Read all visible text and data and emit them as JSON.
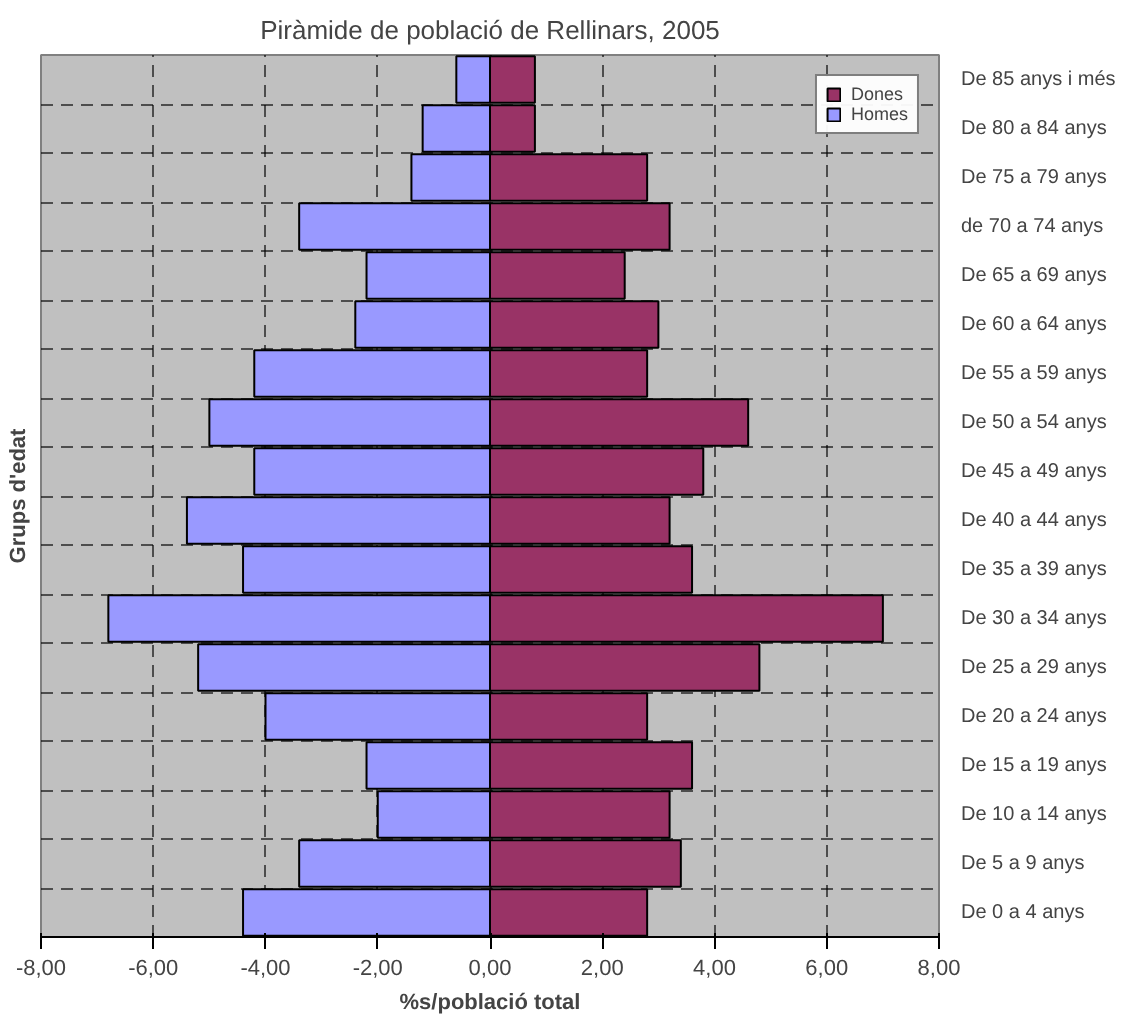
{
  "chart_data": {
    "type": "bar",
    "orientation": "horizontal",
    "title": "Piràmide de població de Rellinars, 2005",
    "xlabel": "%s/població total",
    "ylabel": "Grups d'edat",
    "categories": [
      "De 85 anys i més",
      "De 80 a 84 anys",
      "De 75 a 79 anys",
      "de 70 a 74 anys",
      "De 65 a 69 anys",
      "De 60 a 64 anys",
      "De 55 a 59 anys",
      "De 50 a 54 anys",
      "De 45 a 49 anys",
      "De 40 a 44 anys",
      "De 35 a 39 anys",
      "De 30 a 34 anys",
      "De 25 a 29 anys",
      "De 20 a 24 anys",
      "De 15 a 19 anys",
      "De 10 a 14 anys",
      "De 5 a 9 anys",
      "De 0 a 4 anys"
    ],
    "series": [
      {
        "name": "Dones",
        "color": "#993366",
        "values": [
          0.8,
          0.8,
          2.8,
          3.2,
          2.4,
          3.0,
          2.8,
          4.6,
          3.8,
          3.2,
          3.6,
          7.0,
          4.8,
          2.8,
          3.6,
          3.2,
          3.4,
          2.8
        ]
      },
      {
        "name": "Homes",
        "color": "#9999ff",
        "values": [
          -0.6,
          -1.2,
          -1.4,
          -3.4,
          -2.2,
          -2.4,
          -4.2,
          -5.0,
          -4.2,
          -5.4,
          -4.4,
          -6.8,
          -5.2,
          -4.0,
          -2.2,
          -2.0,
          -3.4,
          -4.4
        ]
      }
    ],
    "xlim": [
      -8,
      8
    ],
    "xticks": [
      {
        "value": -8,
        "label": "-8,00"
      },
      {
        "value": -6,
        "label": "-6,00"
      },
      {
        "value": -4,
        "label": "-4,00"
      },
      {
        "value": -2,
        "label": "-2,00"
      },
      {
        "value": 0,
        "label": "0,00"
      },
      {
        "value": 2,
        "label": "2,00"
      },
      {
        "value": 4,
        "label": "4,00"
      },
      {
        "value": 6,
        "label": "6,00"
      },
      {
        "value": 8,
        "label": "8,00"
      }
    ],
    "stacked": true,
    "grid": true,
    "legend": "top right"
  }
}
